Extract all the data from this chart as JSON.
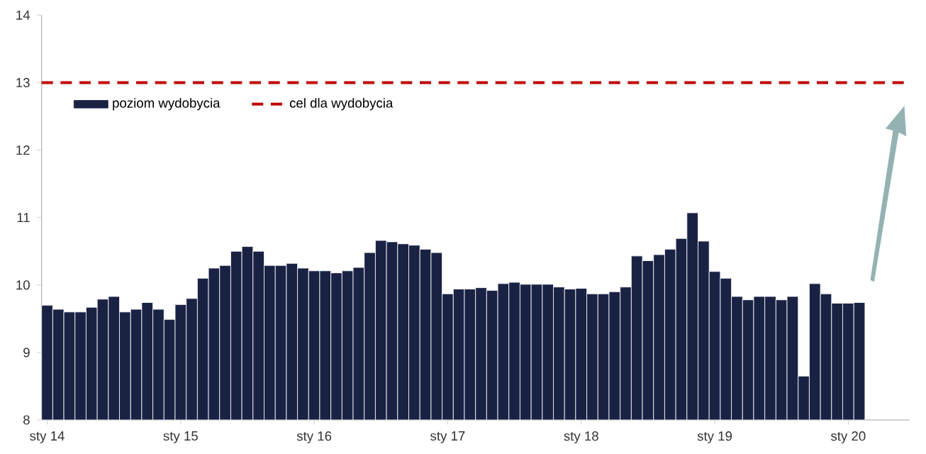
{
  "chart_data": {
    "type": "bar",
    "categories": [
      "sty 14",
      null,
      null,
      null,
      null,
      null,
      null,
      null,
      null,
      null,
      null,
      null,
      "sty 15",
      null,
      null,
      null,
      null,
      null,
      null,
      null,
      null,
      null,
      null,
      null,
      "sty 16",
      null,
      null,
      null,
      null,
      null,
      null,
      null,
      null,
      null,
      null,
      null,
      "sty 17",
      null,
      null,
      null,
      null,
      null,
      null,
      null,
      null,
      null,
      null,
      null,
      "sty 18",
      null,
      null,
      null,
      null,
      null,
      null,
      null,
      null,
      null,
      null,
      null,
      "sty 19",
      null,
      null,
      null,
      null,
      null,
      null,
      null,
      null,
      null,
      null,
      null,
      "sty 20",
      null
    ],
    "series": [
      {
        "name": "poziom wydobycia",
        "color": "#1a2244",
        "values": [
          9.7,
          9.64,
          9.6,
          9.6,
          9.67,
          9.79,
          9.83,
          9.6,
          9.64,
          9.74,
          9.64,
          9.49,
          9.71,
          9.8,
          10.1,
          10.25,
          10.29,
          10.5,
          10.57,
          10.5,
          10.29,
          10.29,
          10.32,
          10.25,
          10.21,
          10.21,
          10.18,
          10.21,
          10.26,
          10.48,
          10.66,
          10.64,
          10.61,
          10.59,
          10.53,
          10.48,
          9.87,
          9.94,
          9.94,
          9.96,
          9.92,
          10.02,
          10.04,
          10.01,
          10.01,
          10.01,
          9.97,
          9.94,
          9.95,
          9.87,
          9.87,
          9.9,
          9.97,
          10.43,
          10.36,
          10.45,
          10.53,
          10.69,
          11.07,
          10.65,
          10.2,
          10.1,
          9.83,
          9.78,
          9.83,
          9.83,
          9.78,
          9.83,
          8.65,
          10.02,
          9.87,
          9.73,
          9.73,
          9.74
        ]
      }
    ],
    "ref_lines": [
      {
        "axis": "y",
        "value": 13,
        "label": "cel dla wydobycia",
        "color": "#c00000",
        "line_style": "dashed"
      }
    ],
    "ylim": [
      8,
      14
    ],
    "yticks": [
      8,
      9,
      10,
      11,
      12,
      13,
      14
    ],
    "legend": "top left"
  }
}
